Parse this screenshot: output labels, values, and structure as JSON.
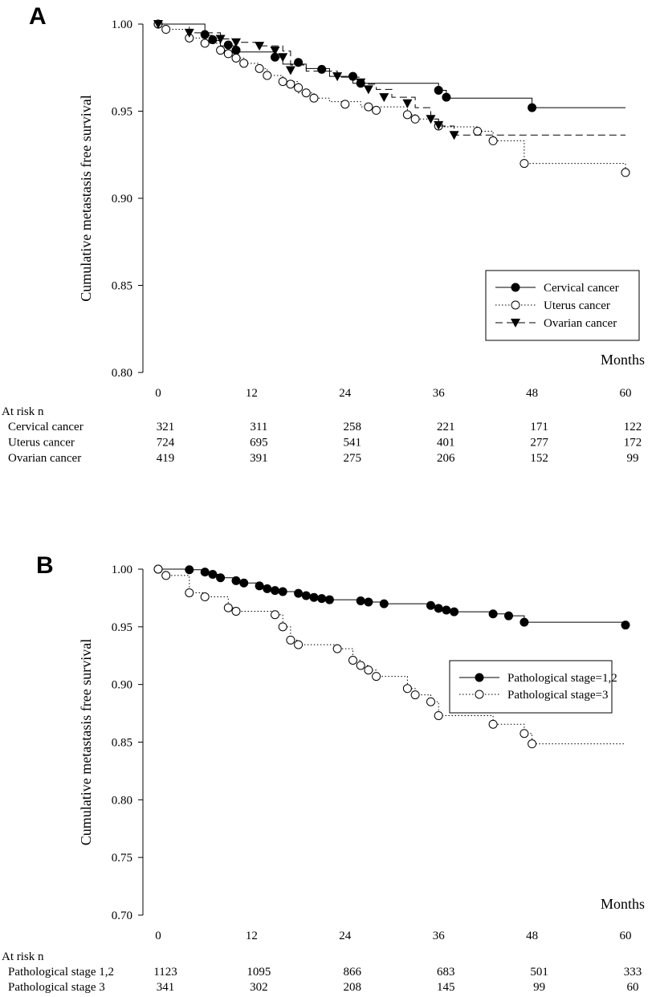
{
  "chart_data": [
    {
      "panel": "A",
      "type": "line",
      "subtype": "kaplan-meier",
      "title": "",
      "ylabel": "Cumulative metastasis free survival",
      "xlabel": "Months",
      "xlim": [
        0,
        60
      ],
      "ylim": [
        0.8,
        1.0
      ],
      "x_ticks": [
        "0",
        "12",
        "24",
        "36",
        "48",
        "60"
      ],
      "y_ticks": [
        "1.00",
        "0.95",
        "0.90",
        "0.85",
        "0.80"
      ],
      "legend_position": "lower-right",
      "series": [
        {
          "name": "Cervical cancer",
          "style": "solid",
          "marker": "filled-circle",
          "steps": [
            [
              0,
              1.0
            ],
            [
              6,
              0.9935
            ],
            [
              7,
              0.9905
            ],
            [
              8,
              0.9875
            ],
            [
              10,
              0.984
            ],
            [
              15,
              0.981
            ],
            [
              16,
              0.977
            ],
            [
              19,
              0.9745
            ],
            [
              22,
              0.97
            ],
            [
              25,
              0.966
            ],
            [
              36,
              0.962
            ],
            [
              37,
              0.9575
            ],
            [
              48,
              0.952
            ],
            [
              60,
              0.952
            ]
          ],
          "censored": [
            [
              0,
              1.0
            ],
            [
              6,
              0.994
            ],
            [
              7,
              0.991
            ],
            [
              9,
              0.988
            ],
            [
              10,
              0.985
            ],
            [
              15,
              0.981
            ],
            [
              18,
              0.978
            ],
            [
              21,
              0.974
            ],
            [
              25,
              0.97
            ],
            [
              26,
              0.966
            ],
            [
              36,
              0.962
            ],
            [
              37,
              0.958
            ],
            [
              48,
              0.952
            ]
          ]
        },
        {
          "name": "Uterus cancer",
          "style": "dotted",
          "marker": "open-circle",
          "steps": [
            [
              0,
              1.0
            ],
            [
              1,
              0.997
            ],
            [
              4,
              0.992
            ],
            [
              6,
              0.989
            ],
            [
              8,
              0.985
            ],
            [
              9,
              0.983
            ],
            [
              10,
              0.9805
            ],
            [
              11,
              0.9775
            ],
            [
              13,
              0.9745
            ],
            [
              14,
              0.9705
            ],
            [
              16,
              0.967
            ],
            [
              18,
              0.9605
            ],
            [
              20,
              0.9575
            ],
            [
              22,
              0.9555
            ],
            [
              26,
              0.9525
            ],
            [
              32,
              0.948
            ],
            [
              33,
              0.9455
            ],
            [
              36,
              0.941
            ],
            [
              41,
              0.9385
            ],
            [
              43,
              0.933
            ],
            [
              47,
              0.92
            ],
            [
              60,
              0.9148
            ]
          ],
          "censored": [
            [
              0,
              1.0
            ],
            [
              1,
              0.997
            ],
            [
              4,
              0.992
            ],
            [
              6,
              0.989
            ],
            [
              8,
              0.985
            ],
            [
              9,
              0.983
            ],
            [
              10,
              0.9805
            ],
            [
              11,
              0.9775
            ],
            [
              13,
              0.9745
            ],
            [
              14,
              0.9705
            ],
            [
              16,
              0.967
            ],
            [
              17,
              0.9655
            ],
            [
              18,
              0.9635
            ],
            [
              19,
              0.9605
            ],
            [
              20,
              0.9575
            ],
            [
              24,
              0.954
            ],
            [
              27,
              0.9525
            ],
            [
              28,
              0.9505
            ],
            [
              32,
              0.948
            ],
            [
              33,
              0.9455
            ],
            [
              36,
              0.9415
            ],
            [
              41,
              0.9385
            ],
            [
              43,
              0.933
            ],
            [
              47,
              0.92
            ],
            [
              60,
              0.9148
            ]
          ]
        },
        {
          "name": "Ovarian cancer",
          "style": "dashed",
          "marker": "filled-triangle-down",
          "steps": [
            [
              0,
              1.0
            ],
            [
              4,
              0.995
            ],
            [
              8,
              0.9915
            ],
            [
              10,
              0.9895
            ],
            [
              13,
              0.9875
            ],
            [
              16,
              0.9845
            ],
            [
              17,
              0.9765
            ],
            [
              19,
              0.973
            ],
            [
              23,
              0.9695
            ],
            [
              26,
              0.9655
            ],
            [
              28,
              0.9625
            ],
            [
              30,
              0.958
            ],
            [
              33,
              0.952
            ],
            [
              35,
              0.9455
            ],
            [
              36,
              0.9415
            ],
            [
              38,
              0.9363
            ],
            [
              60,
              0.9363
            ]
          ],
          "censored": [
            [
              0,
              1.0
            ],
            [
              4,
              0.995
            ],
            [
              8,
              0.9915
            ],
            [
              10,
              0.9895
            ],
            [
              13,
              0.9875
            ],
            [
              15,
              0.9848
            ],
            [
              16,
              0.981
            ],
            [
              17,
              0.9735
            ],
            [
              23,
              0.97
            ],
            [
              26,
              0.9665
            ],
            [
              27,
              0.9625
            ],
            [
              29,
              0.958
            ],
            [
              32,
              0.9545
            ],
            [
              35,
              0.9455
            ],
            [
              36,
              0.942
            ],
            [
              38,
              0.9363
            ]
          ]
        }
      ],
      "at_risk": {
        "header": "At risk n",
        "rows": [
          {
            "label": "Cervical cancer",
            "values": [
              "321",
              "311",
              "258",
              "221",
              "171",
              "122"
            ]
          },
          {
            "label": "Uterus cancer",
            "values": [
              "724",
              "695",
              "541",
              "401",
              "277",
              "172"
            ]
          },
          {
            "label": "Ovarian cancer",
            "values": [
              "419",
              "391",
              "275",
              "206",
              "152",
              "99"
            ]
          }
        ]
      }
    },
    {
      "panel": "B",
      "type": "line",
      "subtype": "kaplan-meier",
      "title": "",
      "ylabel": "Cumulative metastasis free survival",
      "xlabel": "Months",
      "xlim": [
        0,
        60
      ],
      "ylim": [
        0.7,
        1.0
      ],
      "x_ticks": [
        "0",
        "12",
        "24",
        "36",
        "48",
        "60"
      ],
      "y_ticks": [
        "1.00",
        "0.95",
        "0.90",
        "0.85",
        "0.80",
        "0.75",
        "0.70"
      ],
      "legend_position": "lower-right",
      "series": [
        {
          "name": "Pathological stage=1,2",
          "style": "solid",
          "marker": "filled-circle",
          "steps": [
            [
              0,
              1.0
            ],
            [
              4,
              0.9995
            ],
            [
              6,
              0.9975
            ],
            [
              7,
              0.9955
            ],
            [
              8,
              0.9925
            ],
            [
              10,
              0.99
            ],
            [
              11,
              0.988
            ],
            [
              13,
              0.9855
            ],
            [
              14,
              0.983
            ],
            [
              15,
              0.9815
            ],
            [
              16,
              0.9805
            ],
            [
              18,
              0.979
            ],
            [
              19,
              0.977
            ],
            [
              20,
              0.9755
            ],
            [
              21,
              0.9745
            ],
            [
              22,
              0.9735
            ],
            [
              26,
              0.9725
            ],
            [
              27,
              0.9715
            ],
            [
              29,
              0.97
            ],
            [
              35,
              0.9685
            ],
            [
              36,
              0.966
            ],
            [
              37,
              0.9645
            ],
            [
              38,
              0.963
            ],
            [
              43,
              0.9612
            ],
            [
              45,
              0.9595
            ],
            [
              47,
              0.954
            ],
            [
              60,
              0.9515
            ]
          ],
          "censored": [
            [
              0,
              1.0
            ],
            [
              4,
              0.9995
            ],
            [
              6,
              0.9975
            ],
            [
              7,
              0.9955
            ],
            [
              8,
              0.9925
            ],
            [
              10,
              0.99
            ],
            [
              11,
              0.988
            ],
            [
              13,
              0.9855
            ],
            [
              14,
              0.983
            ],
            [
              15,
              0.9815
            ],
            [
              16,
              0.9805
            ],
            [
              18,
              0.979
            ],
            [
              19,
              0.977
            ],
            [
              20,
              0.9755
            ],
            [
              21,
              0.9745
            ],
            [
              22,
              0.9735
            ],
            [
              26,
              0.9725
            ],
            [
              27,
              0.9715
            ],
            [
              29,
              0.97
            ],
            [
              35,
              0.9685
            ],
            [
              36,
              0.966
            ],
            [
              37,
              0.9645
            ],
            [
              38,
              0.963
            ],
            [
              43,
              0.9612
            ],
            [
              45,
              0.9595
            ],
            [
              47,
              0.954
            ],
            [
              60,
              0.9515
            ]
          ]
        },
        {
          "name": "Pathological stage=3",
          "style": "dotted",
          "marker": "open-circle",
          "steps": [
            [
              0,
              1.0
            ],
            [
              1,
              0.9945
            ],
            [
              4,
              0.9795
            ],
            [
              6,
              0.976
            ],
            [
              9,
              0.9665
            ],
            [
              10,
              0.9635
            ],
            [
              15,
              0.9605
            ],
            [
              16,
              0.95
            ],
            [
              17,
              0.9385
            ],
            [
              18,
              0.9345
            ],
            [
              23,
              0.931
            ],
            [
              25,
              0.921
            ],
            [
              26,
              0.9165
            ],
            [
              27,
              0.9125
            ],
            [
              28,
              0.907
            ],
            [
              32,
              0.8965
            ],
            [
              33,
              0.891
            ],
            [
              35,
              0.885
            ],
            [
              36,
              0.873
            ],
            [
              43,
              0.8655
            ],
            [
              47,
              0.8575
            ],
            [
              48,
              0.8485
            ],
            [
              60,
              0.8485
            ]
          ],
          "censored": [
            [
              0,
              1.0
            ],
            [
              1,
              0.9945
            ],
            [
              4,
              0.9795
            ],
            [
              6,
              0.976
            ],
            [
              9,
              0.9665
            ],
            [
              10,
              0.9635
            ],
            [
              15,
              0.9605
            ],
            [
              16,
              0.95
            ],
            [
              17,
              0.9385
            ],
            [
              18,
              0.9345
            ],
            [
              23,
              0.931
            ],
            [
              25,
              0.921
            ],
            [
              26,
              0.9165
            ],
            [
              27,
              0.9125
            ],
            [
              28,
              0.907
            ],
            [
              32,
              0.8965
            ],
            [
              33,
              0.891
            ],
            [
              35,
              0.885
            ],
            [
              36,
              0.873
            ],
            [
              43,
              0.8655
            ],
            [
              47,
              0.8575
            ],
            [
              48,
              0.8485
            ]
          ]
        }
      ],
      "at_risk": {
        "header": "At risk n",
        "rows": [
          {
            "label": "Pathological stage 1,2",
            "values": [
              "1123",
              "1095",
              "866",
              "683",
              "501",
              "333"
            ]
          },
          {
            "label": "Pathological stage 3",
            "values": [
              "341",
              "302",
              "208",
              "145",
              "99",
              "60"
            ]
          }
        ]
      }
    }
  ]
}
